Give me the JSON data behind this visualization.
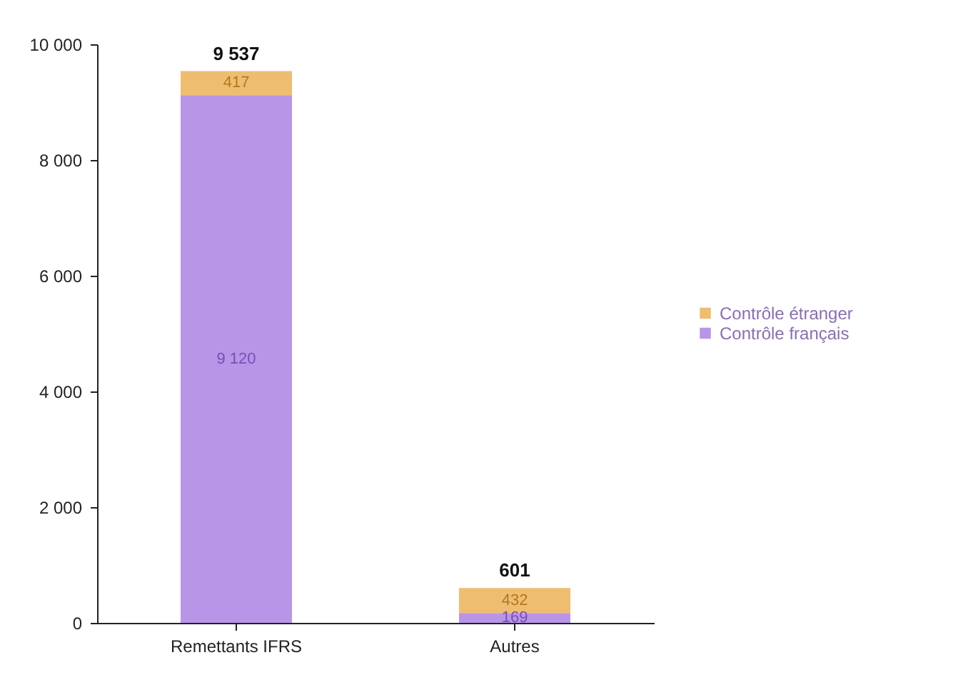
{
  "chart_data": {
    "type": "bar",
    "stacked": true,
    "categories": [
      "Remettants IFRS",
      "Autres"
    ],
    "series": [
      {
        "name": "Contrôle français",
        "color": "#b995e8",
        "values": [
          9120,
          169
        ],
        "value_labels": [
          "9 120",
          "169"
        ]
      },
      {
        "name": "Contrôle étranger",
        "color": "#efbd70",
        "values": [
          417,
          432
        ],
        "value_labels": [
          "417",
          "432"
        ]
      }
    ],
    "totals": [
      "9 537",
      "601"
    ],
    "ylim": [
      0,
      10000
    ],
    "yticks": [
      {
        "value": 0,
        "label": "0"
      },
      {
        "value": 2000,
        "label": "2 000"
      },
      {
        "value": 4000,
        "label": "4 000"
      },
      {
        "value": 6000,
        "label": "6 000"
      },
      {
        "value": 8000,
        "label": "8 000"
      },
      {
        "value": 10000,
        "label": "10 000"
      }
    ],
    "grid": false,
    "legend": "right"
  }
}
